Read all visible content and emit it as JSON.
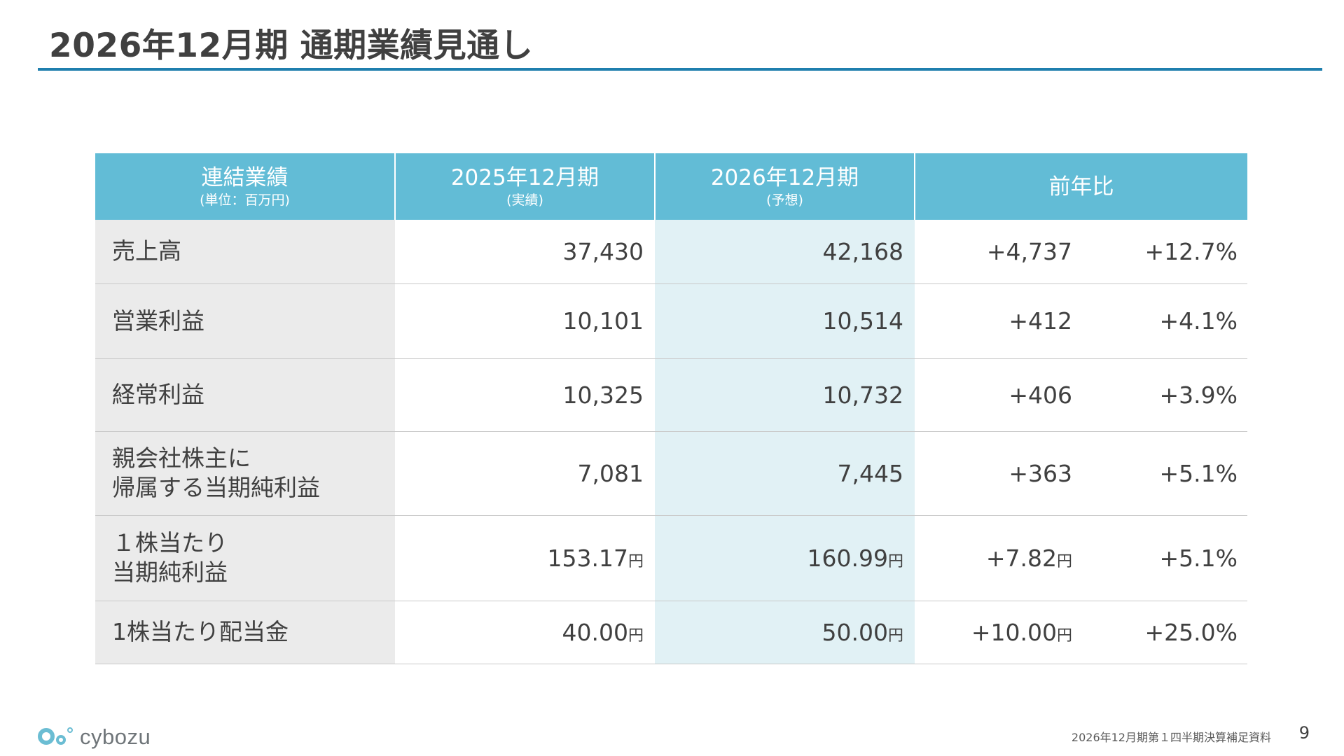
{
  "page": {
    "title": "2026年12月期 通期業績見通し",
    "accent_color": "#1f7fae",
    "header_color": "#62bcd6",
    "forecast_column_color": "#e1f1f5"
  },
  "table": {
    "headers": [
      {
        "main": "連結業績",
        "sub": "(単位：百万円)"
      },
      {
        "main": "2025年12月期",
        "sub": "(実績)"
      },
      {
        "main": "2026年12月期",
        "sub": "(予想)"
      },
      {
        "main": "前年比",
        "sub": ""
      }
    ],
    "rows": [
      {
        "label_line1": "売上高",
        "label_line2": "",
        "actual": "37,430",
        "actual_unit": "",
        "forecast": "42,168",
        "forecast_unit": "",
        "diff": "+4,737",
        "diff_unit": "",
        "pct": "+12.7%"
      },
      {
        "label_line1": "営業利益",
        "label_line2": "",
        "actual": "10,101",
        "actual_unit": "",
        "forecast": "10,514",
        "forecast_unit": "",
        "diff": "+412",
        "diff_unit": "",
        "pct": "+4.1%"
      },
      {
        "label_line1": "経常利益",
        "label_line2": "",
        "actual": "10,325",
        "actual_unit": "",
        "forecast": "10,732",
        "forecast_unit": "",
        "diff": "+406",
        "diff_unit": "",
        "pct": "+3.9%"
      },
      {
        "label_line1": "親会社株主に",
        "label_line2": "帰属する当期純利益",
        "actual": "7,081",
        "actual_unit": "",
        "forecast": "7,445",
        "forecast_unit": "",
        "diff": "+363",
        "diff_unit": "",
        "pct": "+5.1%"
      },
      {
        "label_line1": "１株当たり",
        "label_line2": "当期純利益",
        "actual": "153.17",
        "actual_unit": "円",
        "forecast": "160.99",
        "forecast_unit": "円",
        "diff": "+7.82",
        "diff_unit": "円",
        "pct": "+5.1%"
      },
      {
        "label_line1": "1株当たり配当金",
        "label_line2": "",
        "actual": "40.00",
        "actual_unit": "円",
        "forecast": "50.00",
        "forecast_unit": "円",
        "diff": "+10.00",
        "diff_unit": "円",
        "pct": "+25.0%"
      }
    ]
  },
  "footer": {
    "logo_text": "cybozu",
    "document_name": "2026年12月期第１四半期決算補足資料",
    "page_number": "9"
  }
}
